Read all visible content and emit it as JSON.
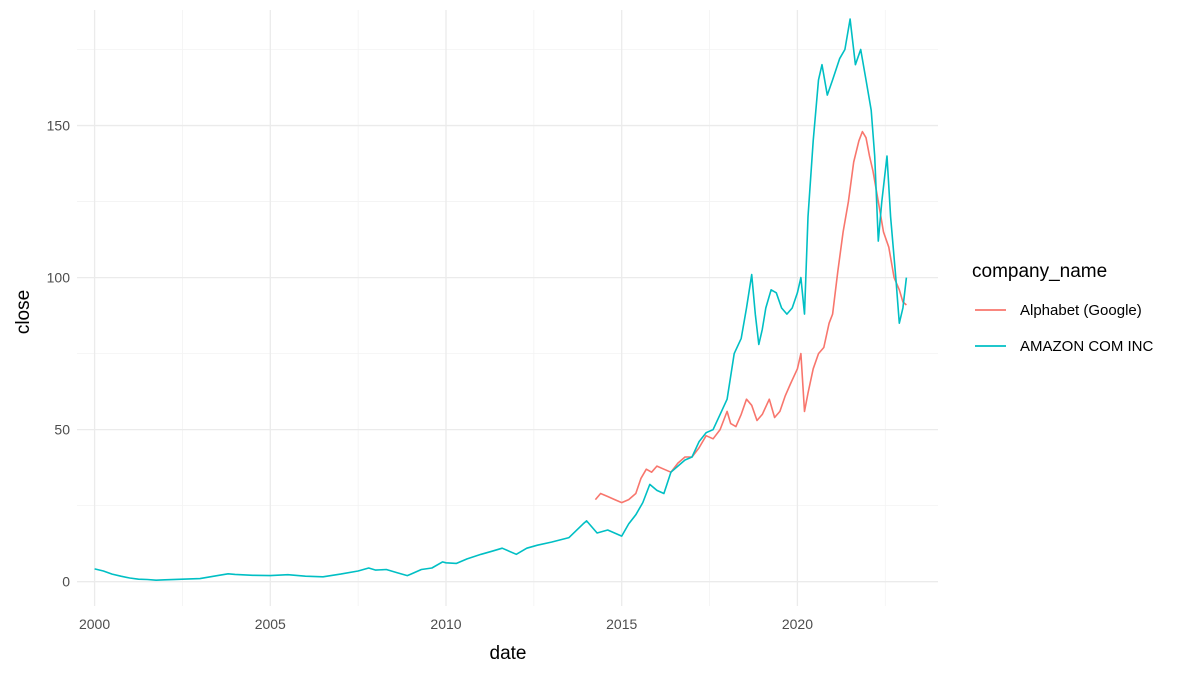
{
  "chart_data": {
    "type": "line",
    "title": "",
    "xlabel": "date",
    "ylabel": "close",
    "xlim": [
      1999.5,
      2024.0
    ],
    "ylim": [
      -8,
      188
    ],
    "x_ticks": [
      2000,
      2005,
      2010,
      2015,
      2020
    ],
    "x_tick_labels": [
      "2000",
      "2005",
      "2010",
      "2015",
      "2020"
    ],
    "y_ticks": [
      0,
      50,
      100,
      150
    ],
    "y_tick_labels": [
      "0",
      "50",
      "100",
      "150"
    ],
    "grid": true,
    "legend": {
      "title": "company_name",
      "position": "right"
    },
    "series": [
      {
        "name": "Alphabet (Google)",
        "color": "#F8766D",
        "x": [
          2014.25,
          2014.4,
          2014.6,
          2014.8,
          2015.0,
          2015.2,
          2015.4,
          2015.55,
          2015.7,
          2015.85,
          2016.0,
          2016.2,
          2016.4,
          2016.6,
          2016.8,
          2017.0,
          2017.2,
          2017.4,
          2017.6,
          2017.8,
          2018.0,
          2018.1,
          2018.25,
          2018.4,
          2018.55,
          2018.7,
          2018.85,
          2019.0,
          2019.2,
          2019.35,
          2019.5,
          2019.65,
          2019.8,
          2020.0,
          2020.1,
          2020.2,
          2020.3,
          2020.45,
          2020.6,
          2020.75,
          2020.9,
          2021.0,
          2021.15,
          2021.3,
          2021.45,
          2021.6,
          2021.75,
          2021.85,
          2021.95,
          2022.05,
          2022.15,
          2022.3,
          2022.45,
          2022.6,
          2022.75,
          2022.9,
          2023.0,
          2023.1
        ],
        "values": [
          27,
          29,
          28,
          27,
          26,
          27,
          29,
          34,
          37,
          36,
          38,
          37,
          36,
          39,
          41,
          41,
          44,
          48,
          47,
          50,
          56,
          52,
          51,
          55,
          60,
          58,
          53,
          55,
          60,
          54,
          56,
          61,
          65,
          70,
          75,
          56,
          62,
          70,
          75,
          77,
          85,
          88,
          102,
          115,
          125,
          138,
          145,
          148,
          146,
          140,
          135,
          125,
          115,
          110,
          100,
          96,
          92,
          91
        ]
      },
      {
        "name": "AMAZON COM INC",
        "color": "#00BFC4",
        "x": [
          2000.0,
          2000.25,
          2000.5,
          2000.75,
          2001.0,
          2001.25,
          2001.5,
          2001.75,
          2002.0,
          2002.5,
          2003.0,
          2003.5,
          2003.8,
          2004.0,
          2004.5,
          2005.0,
          2005.5,
          2006.0,
          2006.5,
          2007.0,
          2007.5,
          2007.8,
          2008.0,
          2008.3,
          2008.6,
          2008.9,
          2009.0,
          2009.3,
          2009.6,
          2009.9,
          2010.0,
          2010.3,
          2010.6,
          2011.0,
          2011.3,
          2011.6,
          2012.0,
          2012.3,
          2012.6,
          2013.0,
          2013.5,
          2013.9,
          2014.0,
          2014.3,
          2014.6,
          2015.0,
          2015.2,
          2015.4,
          2015.6,
          2015.8,
          2016.0,
          2016.2,
          2016.4,
          2016.6,
          2016.8,
          2017.0,
          2017.2,
          2017.4,
          2017.6,
          2017.8,
          2018.0,
          2018.2,
          2018.4,
          2018.55,
          2018.7,
          2018.8,
          2018.9,
          2019.0,
          2019.1,
          2019.25,
          2019.4,
          2019.55,
          2019.7,
          2019.85,
          2020.0,
          2020.1,
          2020.2,
          2020.3,
          2020.45,
          2020.6,
          2020.7,
          2020.85,
          2021.0,
          2021.2,
          2021.35,
          2021.5,
          2021.65,
          2021.8,
          2021.95,
          2022.1,
          2022.2,
          2022.3,
          2022.4,
          2022.55,
          2022.65,
          2022.8,
          2022.9,
          2023.0,
          2023.1
        ],
        "values": [
          4.2,
          3.5,
          2.5,
          1.8,
          1.2,
          0.8,
          0.7,
          0.5,
          0.6,
          0.8,
          1.0,
          2.0,
          2.6,
          2.4,
          2.1,
          2.0,
          2.3,
          1.8,
          1.6,
          2.5,
          3.5,
          4.5,
          3.8,
          4.0,
          3.0,
          2.0,
          2.5,
          4.0,
          4.5,
          6.5,
          6.2,
          6.0,
          7.5,
          9.0,
          10.0,
          11.0,
          9.0,
          11.0,
          12.0,
          13.0,
          14.5,
          19.0,
          20.0,
          16.0,
          17.0,
          15.0,
          19.0,
          22.0,
          26.0,
          32.0,
          30.0,
          29.0,
          36.0,
          38.0,
          40.0,
          41.0,
          46.0,
          49.0,
          50.0,
          55.0,
          60.0,
          75.0,
          80.0,
          90.0,
          101.0,
          88.0,
          78.0,
          83.0,
          90.0,
          96.0,
          95.0,
          90.0,
          88.0,
          90.0,
          95.0,
          100.0,
          88.0,
          120.0,
          145.0,
          165.0,
          170.0,
          160.0,
          165.0,
          172.0,
          175.0,
          185.0,
          170.0,
          175.0,
          165.0,
          155.0,
          140.0,
          112.0,
          125.0,
          140.0,
          120.0,
          100.0,
          85.0,
          90.0,
          100.0
        ]
      }
    ]
  }
}
